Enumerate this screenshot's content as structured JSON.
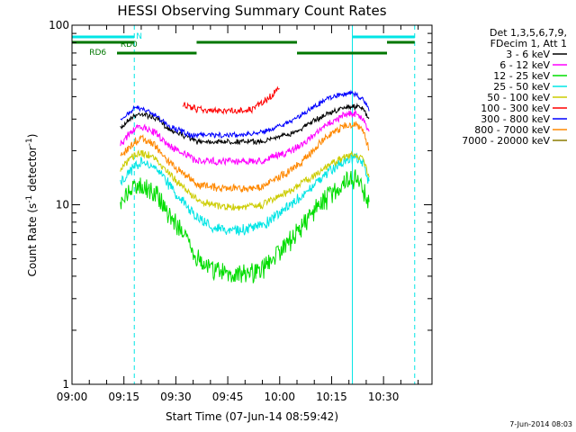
{
  "chart_data": {
    "type": "line",
    "title": "HESSI Observing Summary Count Rates",
    "xlabel": "Start Time (07-Jun-14 08:59:42)",
    "ylabel_main": "Count Rate (s",
    "ylabel_sup1": "-1",
    "ylabel_mid": " detector",
    "ylabel_sup2": "-1",
    "ylabel_end": ")",
    "yscale": "log",
    "ylim": [
      1,
      100
    ],
    "ytick_labels": [
      "1",
      "10",
      "100"
    ],
    "xlim_minutes": [
      0,
      104
    ],
    "xtick_labels": [
      "09:00",
      "09:15",
      "09:30",
      "09:45",
      "10:00",
      "10:15",
      "10:30"
    ],
    "legend_position": "right",
    "legend_header": [
      "Det 1,3,5,6,7,9,",
      "FDecim 1, Att 1"
    ],
    "series": [
      {
        "name": "3 - 6 keV",
        "color": "#000000",
        "x": [
          14,
          16,
          18,
          20,
          22,
          24,
          26,
          28,
          30,
          32,
          34,
          36,
          40,
          45,
          50,
          55,
          58,
          62,
          66,
          70,
          74,
          78,
          80,
          82,
          84,
          86
        ],
        "y": [
          27,
          30,
          32,
          33,
          32,
          31,
          29,
          27,
          26,
          25,
          24,
          23,
          23,
          23,
          23,
          23,
          24,
          25,
          27,
          30,
          33,
          35,
          36,
          36,
          35,
          30
        ]
      },
      {
        "name": "6 - 12 keV",
        "color": "#ff00ff",
        "x": [
          14,
          16,
          18,
          20,
          22,
          24,
          26,
          28,
          30,
          32,
          34,
          36,
          40,
          45,
          50,
          55,
          58,
          62,
          66,
          70,
          74,
          78,
          80,
          82,
          84,
          86
        ],
        "y": [
          22,
          25,
          27,
          28,
          27,
          26,
          24,
          22,
          21,
          20,
          19,
          18,
          18,
          18,
          18,
          18,
          19,
          20,
          22,
          25,
          29,
          32,
          33,
          33,
          31,
          26
        ]
      },
      {
        "name": "12 - 25 keV",
        "color": "#00dd00",
        "x": [
          14,
          16,
          18,
          20,
          22,
          24,
          26,
          28,
          30,
          32,
          34,
          36,
          40,
          45,
          50,
          55,
          58,
          62,
          66,
          70,
          74,
          78,
          80,
          82,
          84,
          86
        ],
        "y": [
          11,
          12.5,
          13.5,
          14,
          13.5,
          12.5,
          11,
          9.5,
          8.5,
          7.5,
          6.5,
          5.5,
          4.8,
          4.5,
          4.5,
          4.8,
          5.5,
          6.5,
          8,
          10,
          12,
          14,
          15,
          15,
          14,
          10
        ]
      },
      {
        "name": "25 - 50 keV",
        "color": "#00e5e5",
        "x": [
          14,
          16,
          18,
          20,
          22,
          24,
          26,
          28,
          30,
          32,
          34,
          36,
          40,
          45,
          50,
          55,
          58,
          62,
          66,
          70,
          74,
          78,
          80,
          82,
          84,
          86
        ],
        "y": [
          14,
          15.5,
          17,
          18,
          17.5,
          16.5,
          15,
          13.5,
          12,
          11,
          10,
          9,
          8,
          7.6,
          7.6,
          8,
          8.8,
          10,
          11.5,
          13.5,
          16,
          18,
          19,
          19,
          18,
          13
        ]
      },
      {
        "name": "50 - 100 keV",
        "color": "#cccc00",
        "x": [
          14,
          16,
          18,
          20,
          22,
          24,
          26,
          28,
          30,
          32,
          34,
          36,
          40,
          45,
          50,
          55,
          58,
          62,
          66,
          70,
          74,
          78,
          80,
          82,
          84,
          86
        ],
        "y": [
          16,
          18,
          19.5,
          20,
          19.5,
          18.5,
          17,
          15.5,
          14,
          13,
          12,
          11,
          10.3,
          10,
          10,
          10.3,
          11,
          12,
          13.5,
          15,
          17,
          18.5,
          19.5,
          19.5,
          18.5,
          14
        ]
      },
      {
        "name": "100 - 300 keV",
        "color": "#ff0000",
        "x": [
          32,
          34,
          36,
          40,
          44,
          48,
          52,
          54,
          56,
          58,
          60
        ],
        "y": [
          37,
          36,
          35,
          34,
          34,
          34,
          35,
          37,
          39,
          42,
          46
        ]
      },
      {
        "name": "300 - 800 keV",
        "color": "#0000ff",
        "x": [
          14,
          16,
          18,
          20,
          22,
          24,
          26,
          28,
          30,
          32,
          34,
          36,
          40,
          45,
          50,
          55,
          58,
          62,
          66,
          70,
          74,
          78,
          80,
          82,
          84,
          86
        ],
        "y": [
          30,
          33,
          35,
          35,
          34,
          32,
          30,
          28,
          27,
          26,
          25,
          25,
          25,
          25,
          25,
          26,
          27,
          29,
          32,
          36,
          40,
          42,
          43,
          42,
          40,
          34
        ]
      },
      {
        "name": "800 - 7000 keV",
        "color": "#ff8800",
        "x": [
          14,
          16,
          18,
          20,
          22,
          24,
          26,
          28,
          30,
          32,
          34,
          36,
          40,
          45,
          50,
          55,
          58,
          62,
          66,
          70,
          74,
          78,
          80,
          82,
          84,
          86
        ],
        "y": [
          19,
          21,
          23,
          24,
          23.5,
          22,
          20,
          18,
          16.5,
          15.5,
          14.5,
          13.5,
          13,
          12.8,
          12.8,
          13,
          14,
          15.5,
          17.5,
          21,
          25,
          28,
          29,
          29,
          27,
          20
        ]
      },
      {
        "name": "7000 - 20000 keV",
        "color": "#8b7a00",
        "x": [],
        "y": []
      }
    ],
    "markers": [
      {
        "label": "N",
        "color": "#00e5e5",
        "segments": [
          [
            0,
            18
          ],
          [
            81,
            99
          ]
        ]
      },
      {
        "label": "RD0",
        "color": "#007700",
        "segments": [
          [
            0,
            18
          ],
          [
            36,
            65
          ],
          [
            91,
            99
          ]
        ]
      },
      {
        "label": "RD6",
        "color": "#007700",
        "segments": [
          [
            13,
            36
          ],
          [
            65,
            91
          ]
        ]
      }
    ],
    "vlines": [
      {
        "x": 0,
        "style": "solid",
        "color": "#00e5e5"
      },
      {
        "x": 18,
        "style": "dashed",
        "color": "#00e5e5"
      },
      {
        "x": 81,
        "style": "solid",
        "color": "#00e5e5"
      },
      {
        "x": 99,
        "style": "dashed",
        "color": "#00e5e5"
      }
    ]
  },
  "timestamp": "7-Jun-2014 08:03"
}
